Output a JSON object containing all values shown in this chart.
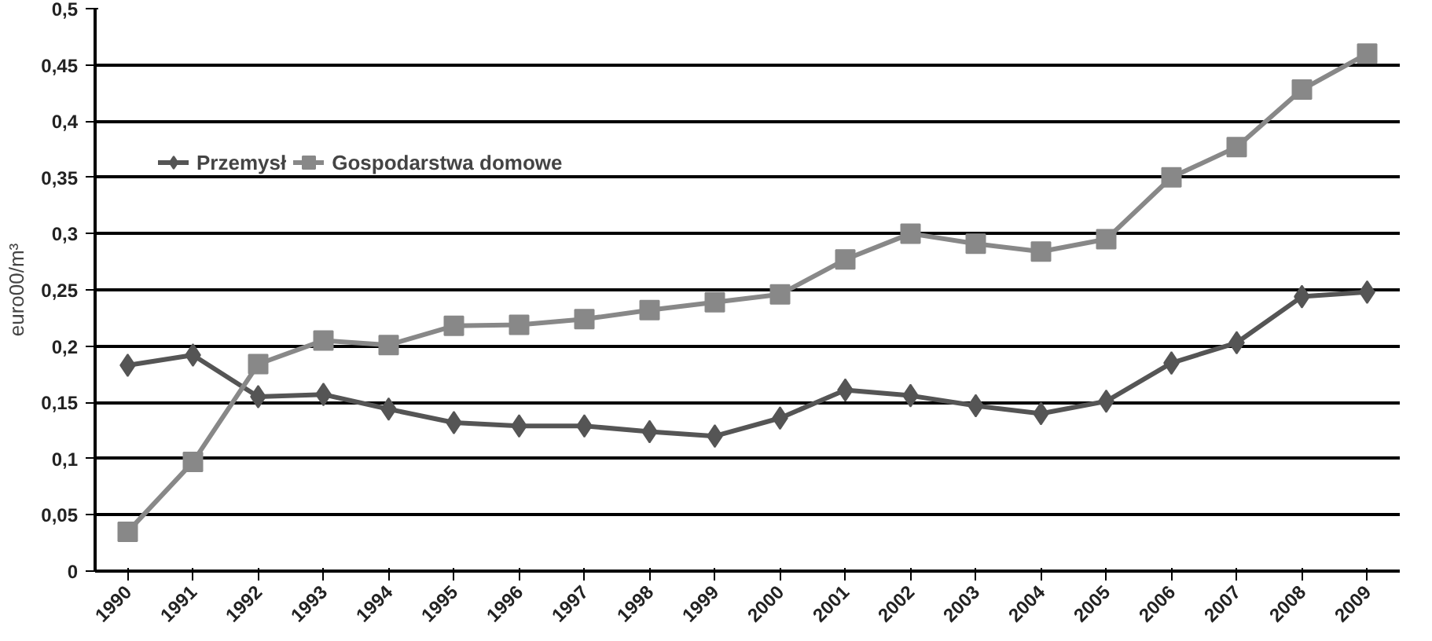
{
  "chart_data": {
    "type": "line",
    "ylabel": "euro00/m³",
    "categories": [
      "1990",
      "1991",
      "1992",
      "1993",
      "1994",
      "1995",
      "1996",
      "1997",
      "1998",
      "1999",
      "2000",
      "2001",
      "2002",
      "2003",
      "2004",
      "2005",
      "2006",
      "2007",
      "2008",
      "2009"
    ],
    "series": [
      {
        "name": "Przemysł",
        "color": "#555555",
        "marker": "diamond",
        "values": [
          0.183,
          0.192,
          0.155,
          0.157,
          0.144,
          0.132,
          0.129,
          0.129,
          0.124,
          0.12,
          0.136,
          0.161,
          0.156,
          0.147,
          0.14,
          0.151,
          0.185,
          0.203,
          0.244,
          0.248
        ]
      },
      {
        "name": "Gospodarstwa domowe",
        "color": "#888888",
        "marker": "square",
        "values": [
          0.035,
          0.097,
          0.184,
          0.205,
          0.201,
          0.218,
          0.219,
          0.224,
          0.232,
          0.239,
          0.246,
          0.277,
          0.3,
          0.291,
          0.284,
          0.295,
          0.35,
          0.377,
          0.428,
          0.46
        ]
      }
    ],
    "ylim": [
      0,
      0.5
    ],
    "yticks": [
      {
        "value": 0,
        "label": "0"
      },
      {
        "value": 0.05,
        "label": "0,05"
      },
      {
        "value": 0.1,
        "label": "0,1"
      },
      {
        "value": 0.15,
        "label": "0,15"
      },
      {
        "value": 0.2,
        "label": "0,2"
      },
      {
        "value": 0.25,
        "label": "0,25"
      },
      {
        "value": 0.3,
        "label": "0,3"
      },
      {
        "value": 0.35,
        "label": "0,35"
      },
      {
        "value": 0.4,
        "label": "0,4"
      },
      {
        "value": 0.45,
        "label": "0,45"
      },
      {
        "value": 0.5,
        "label": "0,5"
      }
    ],
    "grid": "y",
    "legend": "top left",
    "line_style": "solid"
  }
}
